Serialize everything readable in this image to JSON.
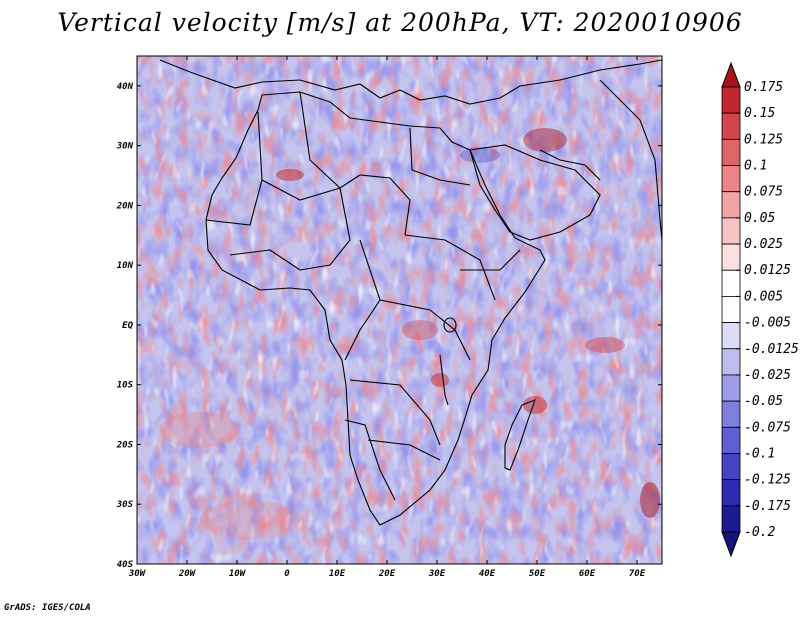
{
  "title": "Vertical velocity [m/s] at 200hPa, VT: 2020010906",
  "credit": "GrADS: IGES/COLA",
  "map": {
    "lon_range": [
      -30,
      75
    ],
    "lat_range": [
      -40,
      45
    ],
    "lon_ticks": [
      {
        "value": -30,
        "label": "30W"
      },
      {
        "value": -20,
        "label": "20W"
      },
      {
        "value": -10,
        "label": "10W"
      },
      {
        "value": 0,
        "label": "0"
      },
      {
        "value": 10,
        "label": "10E"
      },
      {
        "value": 20,
        "label": "20E"
      },
      {
        "value": 30,
        "label": "30E"
      },
      {
        "value": 40,
        "label": "40E"
      },
      {
        "value": 50,
        "label": "50E"
      },
      {
        "value": 60,
        "label": "60E"
      },
      {
        "value": 70,
        "label": "70E"
      }
    ],
    "lat_ticks": [
      {
        "value": 40,
        "label": "40N"
      },
      {
        "value": 30,
        "label": "30N"
      },
      {
        "value": 20,
        "label": "20N"
      },
      {
        "value": 10,
        "label": "10N"
      },
      {
        "value": 0,
        "label": "EQ"
      },
      {
        "value": -10,
        "label": "10S"
      },
      {
        "value": -20,
        "label": "20S"
      },
      {
        "value": -30,
        "label": "30S"
      },
      {
        "value": -40,
        "label": "40S"
      }
    ]
  },
  "colorbar": {
    "levels": [
      {
        "label": "0.175",
        "color": "#a8141a"
      },
      {
        "label": "0.15",
        "color": "#c0282d"
      },
      {
        "label": "0.125",
        "color": "#d2454a"
      },
      {
        "label": "0.1",
        "color": "#df6468"
      },
      {
        "label": "0.075",
        "color": "#e98588"
      },
      {
        "label": "0.05",
        "color": "#f2a5a7"
      },
      {
        "label": "0.025",
        "color": "#f8c4c6"
      },
      {
        "label": "0.0125",
        "color": "#fce0e1"
      },
      {
        "label": "0.005",
        "color": "#ffffff"
      },
      {
        "label": "-0.005",
        "color": "#ffffff"
      },
      {
        "label": "-0.0125",
        "color": "#dcdcf7"
      },
      {
        "label": "-0.025",
        "color": "#bdbdf0"
      },
      {
        "label": "-0.05",
        "color": "#9d9de7"
      },
      {
        "label": "-0.075",
        "color": "#7e7edd"
      },
      {
        "label": "-0.1",
        "color": "#5f5fd2"
      },
      {
        "label": "-0.125",
        "color": "#4343c4"
      },
      {
        "label": "-0.175",
        "color": "#2c2cb0"
      },
      {
        "label": "-0.2",
        "color": "#1c1c90"
      }
    ],
    "top_color": "#a8141a",
    "bottom_color": "#14147a"
  },
  "colors": {
    "red": "#d94a4f",
    "blue": "#5a5ad8",
    "border": "#000000"
  }
}
